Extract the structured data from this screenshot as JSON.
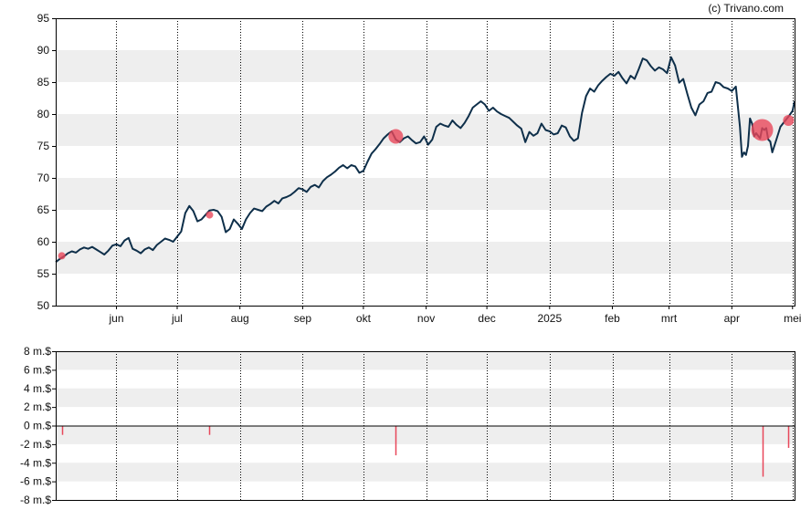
{
  "watermark": "(c) Trivano.com",
  "colors": {
    "line": "#0e2f4a",
    "marker": "#e8475a",
    "band": "#eeeeee",
    "axis": "#000000",
    "vgrid": "#000000"
  },
  "chart_data": [
    {
      "type": "line",
      "title": "",
      "xlabel": "",
      "ylabel": "",
      "ylim": [
        50,
        95
      ],
      "y_ticks": [
        "50",
        "55",
        "60",
        "65",
        "70",
        "75",
        "80",
        "85",
        "90",
        "95"
      ],
      "x_range": [
        0,
        365
      ],
      "x_ticks": [
        {
          "label": "jun",
          "x": 30
        },
        {
          "label": "jul",
          "x": 60
        },
        {
          "label": "aug",
          "x": 91
        },
        {
          "label": "sep",
          "x": 122
        },
        {
          "label": "okt",
          "x": 152
        },
        {
          "label": "nov",
          "x": 183
        },
        {
          "label": "dec",
          "x": 213
        },
        {
          "label": "2025",
          "x": 244
        },
        {
          "label": "feb",
          "x": 275
        },
        {
          "label": "mrt",
          "x": 303
        },
        {
          "label": "apr",
          "x": 334
        },
        {
          "label": "mei",
          "x": 364
        }
      ],
      "grid": "horizontal bands, vertical dotted lines",
      "series": [
        {
          "points": [
            [
              0,
              56.8
            ],
            [
              2,
              57.3
            ],
            [
              4,
              57.7
            ],
            [
              6,
              58.2
            ],
            [
              8,
              58.5
            ],
            [
              10,
              58.3
            ],
            [
              12,
              58.8
            ],
            [
              14,
              59.1
            ],
            [
              16,
              58.9
            ],
            [
              18,
              59.2
            ],
            [
              20,
              58.8
            ],
            [
              22,
              58.4
            ],
            [
              24,
              58.0
            ],
            [
              26,
              58.6
            ],
            [
              28,
              59.4
            ],
            [
              30,
              59.6
            ],
            [
              32,
              59.3
            ],
            [
              34,
              60.2
            ],
            [
              36,
              60.6
            ],
            [
              38,
              58.9
            ],
            [
              40,
              58.6
            ],
            [
              42,
              58.2
            ],
            [
              44,
              58.8
            ],
            [
              46,
              59.1
            ],
            [
              48,
              58.7
            ],
            [
              50,
              59.5
            ],
            [
              52,
              60.0
            ],
            [
              54,
              60.5
            ],
            [
              56,
              60.3
            ],
            [
              58,
              60.0
            ],
            [
              60,
              60.8
            ],
            [
              62,
              61.6
            ],
            [
              64,
              64.5
            ],
            [
              66,
              65.6
            ],
            [
              68,
              64.8
            ],
            [
              70,
              63.2
            ],
            [
              72,
              63.5
            ],
            [
              74,
              64.2
            ],
            [
              76,
              64.9
            ],
            [
              78,
              65.0
            ],
            [
              80,
              64.8
            ],
            [
              82,
              63.9
            ],
            [
              84,
              61.5
            ],
            [
              86,
              62.0
            ],
            [
              88,
              63.5
            ],
            [
              90,
              62.8
            ],
            [
              92,
              62.0
            ],
            [
              94,
              63.5
            ],
            [
              96,
              64.5
            ],
            [
              98,
              65.2
            ],
            [
              100,
              65.0
            ],
            [
              102,
              64.8
            ],
            [
              104,
              65.5
            ],
            [
              106,
              65.9
            ],
            [
              108,
              66.4
            ],
            [
              110,
              66.0
            ],
            [
              112,
              66.8
            ],
            [
              114,
              67.0
            ],
            [
              116,
              67.3
            ],
            [
              118,
              67.8
            ],
            [
              120,
              68.4
            ],
            [
              122,
              68.2
            ],
            [
              124,
              67.8
            ],
            [
              126,
              68.6
            ],
            [
              128,
              68.9
            ],
            [
              130,
              68.5
            ],
            [
              132,
              69.5
            ],
            [
              134,
              70.1
            ],
            [
              136,
              70.5
            ],
            [
              138,
              71.0
            ],
            [
              140,
              71.6
            ],
            [
              142,
              72.0
            ],
            [
              144,
              71.5
            ],
            [
              146,
              72.0
            ],
            [
              148,
              71.8
            ],
            [
              150,
              70.8
            ],
            [
              152,
              71.1
            ],
            [
              154,
              72.5
            ],
            [
              156,
              73.8
            ],
            [
              158,
              74.5
            ],
            [
              160,
              75.3
            ],
            [
              162,
              76.2
            ],
            [
              164,
              76.8
            ],
            [
              166,
              77.3
            ],
            [
              168,
              76.0
            ],
            [
              170,
              75.6
            ],
            [
              172,
              76.2
            ],
            [
              174,
              76.5
            ],
            [
              176,
              75.9
            ],
            [
              178,
              75.4
            ],
            [
              180,
              75.6
            ],
            [
              182,
              76.5
            ],
            [
              184,
              75.2
            ],
            [
              186,
              76.0
            ],
            [
              188,
              78.0
            ],
            [
              190,
              78.5
            ],
            [
              192,
              78.2
            ],
            [
              194,
              78.0
            ],
            [
              196,
              79.0
            ],
            [
              198,
              78.3
            ],
            [
              200,
              77.8
            ],
            [
              202,
              78.6
            ],
            [
              204,
              79.7
            ],
            [
              206,
              81.0
            ],
            [
              208,
              81.5
            ],
            [
              210,
              82.0
            ],
            [
              212,
              81.5
            ],
            [
              214,
              80.5
            ],
            [
              216,
              81.0
            ],
            [
              218,
              80.4
            ],
            [
              220,
              80.0
            ],
            [
              222,
              79.7
            ],
            [
              224,
              79.4
            ],
            [
              226,
              78.8
            ],
            [
              228,
              78.2
            ],
            [
              230,
              77.7
            ],
            [
              232,
              75.6
            ],
            [
              234,
              77.2
            ],
            [
              236,
              76.6
            ],
            [
              238,
              77.0
            ],
            [
              240,
              78.5
            ],
            [
              242,
              77.5
            ],
            [
              244,
              77.3
            ],
            [
              246,
              76.8
            ],
            [
              248,
              77.0
            ],
            [
              250,
              78.2
            ],
            [
              252,
              77.9
            ],
            [
              254,
              76.5
            ],
            [
              256,
              75.8
            ],
            [
              258,
              76.2
            ],
            [
              260,
              80.2
            ],
            [
              262,
              82.8
            ],
            [
              264,
              84.0
            ],
            [
              266,
              83.5
            ],
            [
              268,
              84.5
            ],
            [
              270,
              85.2
            ],
            [
              272,
              85.8
            ],
            [
              274,
              86.3
            ],
            [
              276,
              86.0
            ],
            [
              278,
              86.6
            ],
            [
              280,
              85.6
            ],
            [
              282,
              84.8
            ],
            [
              284,
              86.0
            ],
            [
              286,
              85.5
            ],
            [
              288,
              87.0
            ],
            [
              290,
              88.7
            ],
            [
              292,
              88.4
            ],
            [
              294,
              87.5
            ],
            [
              296,
              86.8
            ],
            [
              298,
              87.3
            ],
            [
              300,
              87.0
            ],
            [
              302,
              86.4
            ],
            [
              304,
              88.9
            ],
            [
              306,
              87.6
            ],
            [
              308,
              84.9
            ],
            [
              310,
              85.5
            ],
            [
              312,
              83.2
            ],
            [
              314,
              81.0
            ],
            [
              316,
              79.8
            ],
            [
              318,
              81.5
            ],
            [
              320,
              82.0
            ],
            [
              322,
              83.3
            ],
            [
              324,
              83.5
            ],
            [
              326,
              85.0
            ],
            [
              328,
              84.8
            ],
            [
              330,
              84.2
            ],
            [
              332,
              84.0
            ],
            [
              334,
              83.6
            ],
            [
              336,
              84.3
            ],
            [
              338,
              78.0
            ],
            [
              339,
              73.3
            ],
            [
              340,
              74.0
            ],
            [
              341,
              73.6
            ],
            [
              342,
              75.0
            ],
            [
              343,
              79.3
            ],
            [
              344,
              78.5
            ],
            [
              345,
              76.5
            ],
            [
              346,
              77.0
            ],
            [
              348,
              76.2
            ],
            [
              349,
              77.8
            ],
            [
              350,
              77.5
            ],
            [
              351,
              77.8
            ],
            [
              352,
              76.0
            ],
            [
              353,
              75.7
            ],
            [
              354,
              74.0
            ],
            [
              356,
              76.0
            ],
            [
              358,
              78.0
            ],
            [
              360,
              78.8
            ],
            [
              362,
              79.6
            ],
            [
              364,
              80.5
            ],
            [
              365,
              82.0
            ]
          ]
        }
      ],
      "markers": [
        {
          "x": 3,
          "y": 57.8,
          "size": 1
        },
        {
          "x": 76,
          "y": 64.2,
          "size": 1
        },
        {
          "x": 168,
          "y": 76.5,
          "size": 3
        },
        {
          "x": 349,
          "y": 77.5,
          "size": 5
        },
        {
          "x": 362,
          "y": 79.0,
          "size": 2
        }
      ]
    },
    {
      "type": "bar",
      "title": "",
      "xlabel": "",
      "ylabel": "",
      "ylim": [
        -8,
        8
      ],
      "y_ticks": [
        "-8 m.$",
        "-6 m.$",
        "-4 m.$",
        "-2 m.$",
        "0 m.$",
        "2 m.$",
        "4 m.$",
        "6 m.$",
        "8 m.$"
      ],
      "bars": [
        {
          "x": 3,
          "value": -1.0
        },
        {
          "x": 76,
          "value": -1.0
        },
        {
          "x": 168,
          "value": -3.2
        },
        {
          "x": 349,
          "value": -5.5
        },
        {
          "x": 362,
          "value": -2.4
        }
      ]
    }
  ]
}
